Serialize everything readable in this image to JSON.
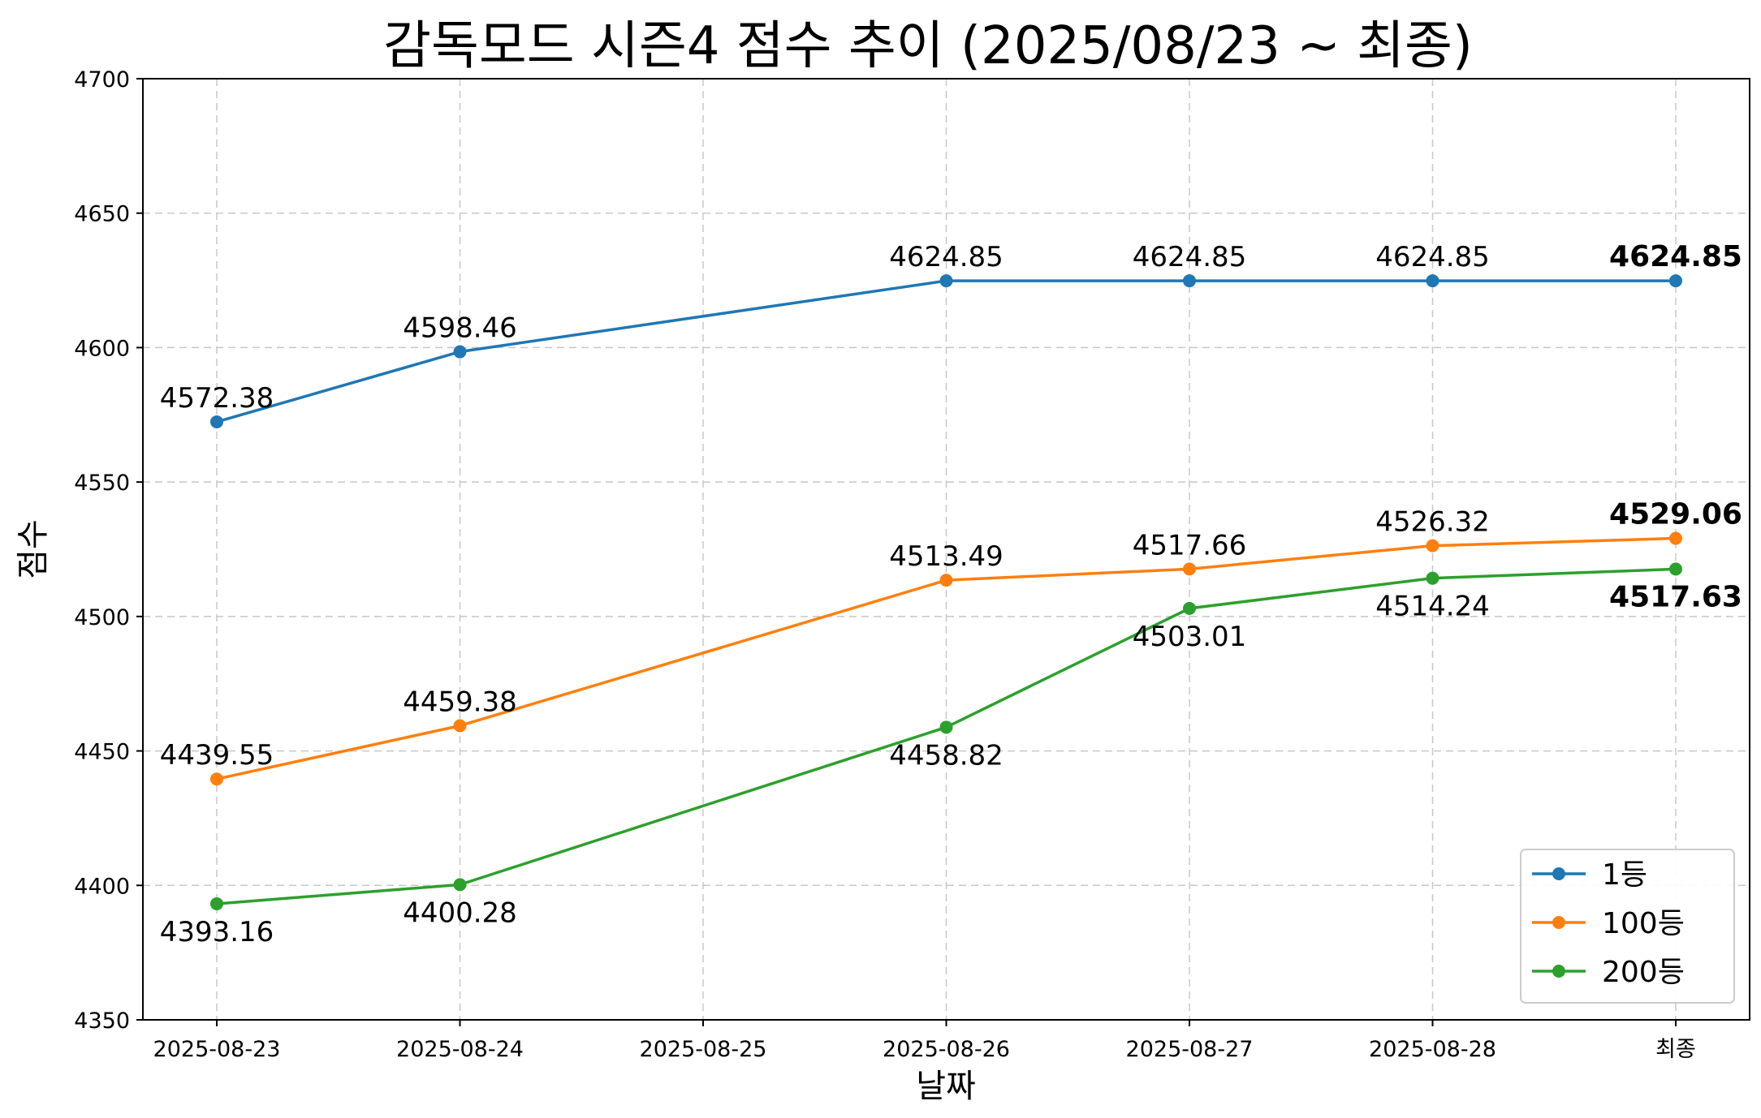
{
  "chart_data": {
    "type": "line",
    "title": "감독모드 시즌4 점수 추이 (2025/08/23 ~ 최종)",
    "xlabel": "날짜",
    "ylabel": "점수",
    "categories": [
      "2025-08-23",
      "2025-08-24",
      "2025-08-25",
      "2025-08-26",
      "2025-08-27",
      "2025-08-28",
      "최종"
    ],
    "ylim": [
      4350,
      4700
    ],
    "yticks": [
      4350,
      4400,
      4450,
      4500,
      4550,
      4600,
      4650,
      4700
    ],
    "grid": true,
    "legend_position": "bottom-right",
    "series": [
      {
        "name": "1등",
        "color": "#1f77b4",
        "label_position": "above",
        "values": [
          4572.38,
          4598.46,
          null,
          4624.85,
          4624.85,
          4624.85,
          4624.85
        ],
        "labels": [
          "4572.38",
          "4598.46",
          null,
          "4624.85",
          "4624.85",
          "4624.85",
          "4624.85"
        ]
      },
      {
        "name": "100등",
        "color": "#ff7f0e",
        "label_position": "above",
        "values": [
          4439.55,
          4459.38,
          null,
          4513.49,
          4517.66,
          4526.32,
          4529.06
        ],
        "labels": [
          "4439.55",
          "4459.38",
          null,
          "4513.49",
          "4517.66",
          "4526.32",
          "4529.06"
        ]
      },
      {
        "name": "200등",
        "color": "#2ca02c",
        "label_position": "below",
        "values": [
          4393.16,
          4400.28,
          null,
          4458.82,
          4503.01,
          4514.24,
          4517.63
        ],
        "labels": [
          "4393.16",
          "4400.28",
          null,
          "4458.82",
          "4503.01",
          "4514.24",
          "4517.63"
        ]
      }
    ]
  }
}
